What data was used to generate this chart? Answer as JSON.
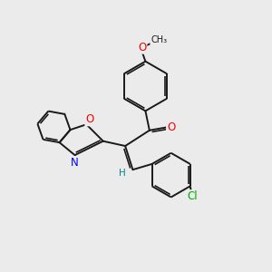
{
  "bg_color": "#ebebeb",
  "bond_color": "#1a1a1a",
  "bond_width": 1.4,
  "atom_colors": {
    "O": "#ff0000",
    "N": "#0000ff",
    "Cl": "#00aa00",
    "H": "#008888",
    "C": "#1a1a1a"
  },
  "font_size": 8.5,
  "font_size_small": 7.0,
  "double_sep": 0.072
}
